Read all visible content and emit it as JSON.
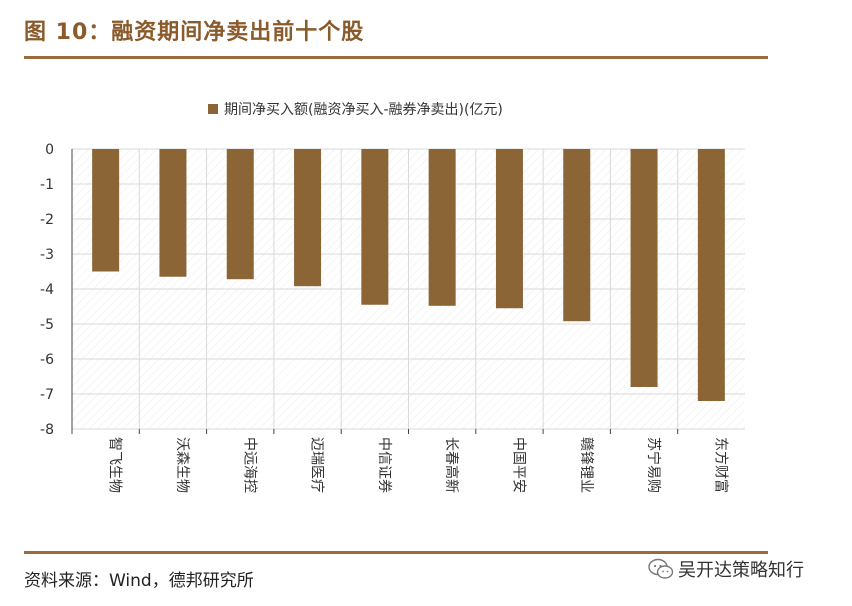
{
  "figure": {
    "title": "图 10：融资期间净卖出前十个股",
    "source": "资料来源：Wind，德邦研究所",
    "watermark": "吴开达策略知行"
  },
  "colors": {
    "bar": "#8B6535",
    "accent": "#9C6A3C",
    "grid": "#D9D9D9"
  },
  "chart_data": {
    "type": "bar",
    "title": "",
    "legend": [
      "期间净买入额(融资净买入-融券净卖出)(亿元)"
    ],
    "legend_position": "top",
    "categories": [
      "智飞生物",
      "沃森生物",
      "中远海控",
      "迈瑞医疗",
      "中信证券",
      "长春高新",
      "中国平安",
      "赣锋锂业",
      "苏宁易购",
      "东方财富"
    ],
    "series": [
      {
        "name": "期间净买入额(融资净买入-融券净卖出)(亿元)",
        "values": [
          -3.5,
          -3.65,
          -3.72,
          -3.92,
          -4.45,
          -4.48,
          -4.55,
          -4.92,
          -6.8,
          -7.2
        ]
      }
    ],
    "ylim": [
      -8,
      0
    ],
    "yticks": [
      "0",
      "-1",
      "-2",
      "-3",
      "-4",
      "-5",
      "-6",
      "-7",
      "-8"
    ],
    "xlabel": "",
    "ylabel": "",
    "grid": true
  }
}
